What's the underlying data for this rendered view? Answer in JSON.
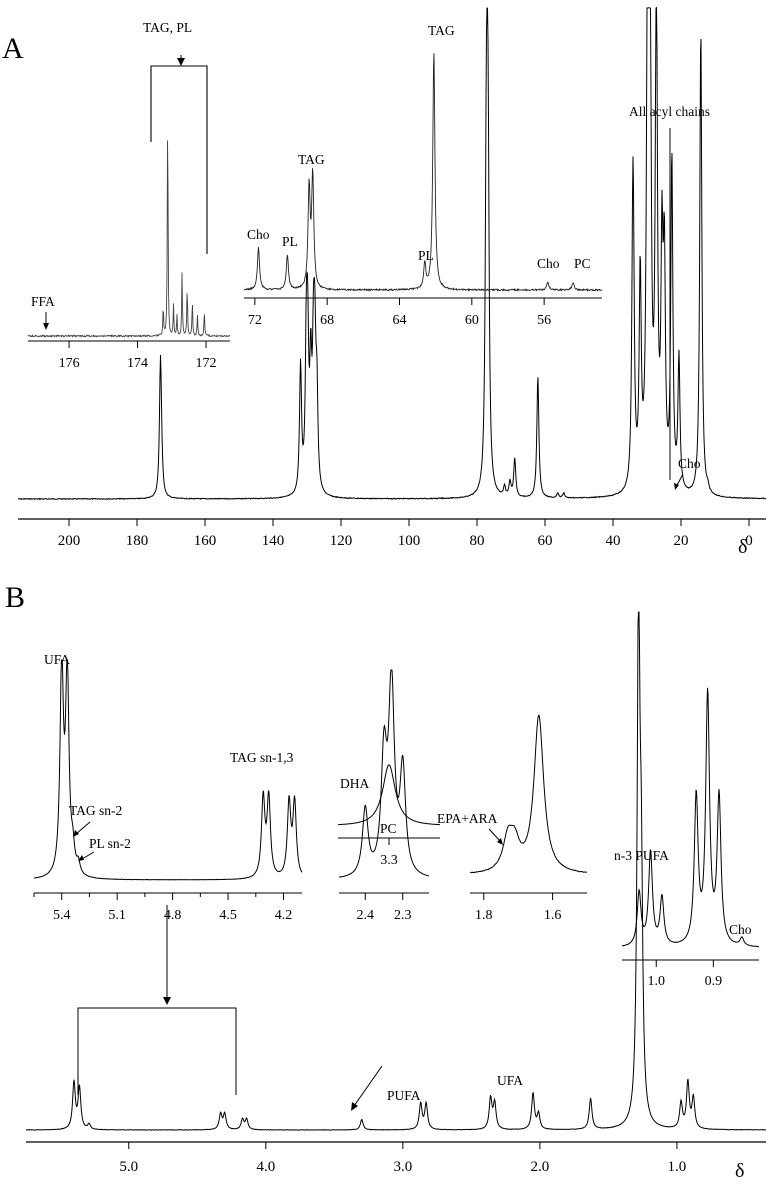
{
  "figure": {
    "panel_a_letter": "A",
    "panel_b_letter": "B",
    "delta_symbol": "δ"
  },
  "chart_data": [
    {
      "id": "A-main",
      "type": "line",
      "title": "",
      "xlabel": "δ",
      "ylabel": "",
      "xlim": [
        215,
        -5
      ],
      "x_reversed": true,
      "x_ticks": [
        "200",
        "180",
        "160",
        "140",
        "120",
        "100",
        "80",
        "60",
        "40",
        "20",
        "0"
      ],
      "grid": false,
      "peaks": [
        {
          "x": 173.1,
          "h": 0.27
        },
        {
          "x": 172.8,
          "h": 0.04
        },
        {
          "x": 131.9,
          "h": 0.26
        },
        {
          "x": 130.2,
          "h": 0.28
        },
        {
          "x": 129.8,
          "h": 0.27
        },
        {
          "x": 128.9,
          "h": 0.23
        },
        {
          "x": 128.1,
          "h": 0.25
        },
        {
          "x": 127.7,
          "h": 0.25
        },
        {
          "x": 127.1,
          "h": 0.19
        },
        {
          "x": 77.3,
          "h": 0.47
        },
        {
          "x": 77.0,
          "h": 0.49
        },
        {
          "x": 76.7,
          "h": 0.47
        },
        {
          "x": 71.9,
          "h": 0.02
        },
        {
          "x": 70.3,
          "h": 0.03
        },
        {
          "x": 68.9,
          "h": 0.08
        },
        {
          "x": 62.1,
          "h": 0.25
        },
        {
          "x": 56.3,
          "h": 0.01
        },
        {
          "x": 54.5,
          "h": 0.01
        },
        {
          "x": 34.2,
          "h": 0.39
        },
        {
          "x": 34.0,
          "h": 0.33
        },
        {
          "x": 32.0,
          "h": 0.43
        },
        {
          "x": 29.8,
          "h": 0.98
        },
        {
          "x": 29.4,
          "h": 0.85
        },
        {
          "x": 29.1,
          "h": 0.67
        },
        {
          "x": 27.3,
          "h": 0.52
        },
        {
          "x": 27.2,
          "h": 0.54
        },
        {
          "x": 25.6,
          "h": 0.46
        },
        {
          "x": 24.9,
          "h": 0.44
        },
        {
          "x": 22.7,
          "h": 0.68
        },
        {
          "x": 20.6,
          "h": 0.27
        },
        {
          "x": 14.2,
          "h": 0.73
        },
        {
          "x": 14.1,
          "h": 0.24
        },
        {
          "x": 12.1,
          "h": 0.01
        }
      ],
      "annotations": [
        "All acyl chains",
        "Cho"
      ]
    },
    {
      "id": "A-inset-carbonyl",
      "type": "line",
      "xlim": [
        177.2,
        171.3
      ],
      "x_reversed": true,
      "x_ticks": [
        "176",
        "174",
        "172"
      ],
      "peaks": [
        {
          "x": 173.25,
          "h": 0.12
        },
        {
          "x": 173.12,
          "h": 0.92
        },
        {
          "x": 172.95,
          "h": 0.12
        },
        {
          "x": 172.85,
          "h": 0.08
        },
        {
          "x": 172.7,
          "h": 0.25
        },
        {
          "x": 172.55,
          "h": 0.2
        },
        {
          "x": 172.4,
          "h": 0.14
        },
        {
          "x": 172.25,
          "h": 0.08
        },
        {
          "x": 172.05,
          "h": 0.1
        }
      ],
      "annotations": [
        "TAG, PL",
        "FFA"
      ]
    },
    {
      "id": "A-inset-glycerol",
      "type": "line",
      "xlim": [
        72.6,
        52.8
      ],
      "x_reversed": true,
      "x_ticks": [
        "72",
        "68",
        "64",
        "60",
        "56"
      ],
      "peaks": [
        {
          "x": 71.8,
          "h": 0.17
        },
        {
          "x": 70.2,
          "h": 0.14
        },
        {
          "x": 69.0,
          "h": 0.4
        },
        {
          "x": 68.8,
          "h": 0.45
        },
        {
          "x": 62.6,
          "h": 0.1
        },
        {
          "x": 62.1,
          "h": 0.96
        },
        {
          "x": 55.8,
          "h": 0.03
        },
        {
          "x": 54.4,
          "h": 0.03
        }
      ],
      "annotations": [
        "Cho",
        "PL",
        "TAG",
        "PL",
        "TAG",
        "Cho",
        "PC"
      ]
    },
    {
      "id": "B-main",
      "type": "line",
      "title": "",
      "xlabel": "δ",
      "ylabel": "",
      "xlim": [
        5.75,
        0.35
      ],
      "x_reversed": true,
      "x_ticks": [
        "5.0",
        "4.0",
        "3.0",
        "2.0",
        "1.0"
      ],
      "grid": false,
      "peaks": [
        {
          "x": 5.4,
          "h": 0.09
        },
        {
          "x": 5.36,
          "h": 0.08
        },
        {
          "x": 5.29,
          "h": 0.01
        },
        {
          "x": 4.33,
          "h": 0.03
        },
        {
          "x": 4.3,
          "h": 0.03
        },
        {
          "x": 4.17,
          "h": 0.02
        },
        {
          "x": 4.14,
          "h": 0.02
        },
        {
          "x": 3.3,
          "h": 0.02
        },
        {
          "x": 2.87,
          "h": 0.05
        },
        {
          "x": 2.83,
          "h": 0.05
        },
        {
          "x": 2.36,
          "h": 0.06
        },
        {
          "x": 2.33,
          "h": 0.05
        },
        {
          "x": 2.05,
          "h": 0.07
        },
        {
          "x": 2.01,
          "h": 0.03
        },
        {
          "x": 1.63,
          "h": 0.06
        },
        {
          "x": 1.28,
          "h": 1.0
        },
        {
          "x": 1.26,
          "h": 0.4
        },
        {
          "x": 0.97,
          "h": 0.05
        },
        {
          "x": 0.92,
          "h": 0.09
        },
        {
          "x": 0.88,
          "h": 0.06
        }
      ],
      "annotations": [
        "PUFA",
        "UFA"
      ]
    },
    {
      "id": "B-inset-5.4-4.2",
      "type": "line",
      "xlim": [
        5.55,
        4.1
      ],
      "x_reversed": true,
      "x_ticks": [
        "5.4",
        "5.1",
        "4.8",
        "4.5",
        "4.2"
      ],
      "peaks": [
        {
          "x": 5.4,
          "h": 0.95
        },
        {
          "x": 5.37,
          "h": 0.92
        },
        {
          "x": 5.34,
          "h": 0.1
        },
        {
          "x": 5.31,
          "h": 0.05
        },
        {
          "x": 4.31,
          "h": 0.36
        },
        {
          "x": 4.28,
          "h": 0.36
        },
        {
          "x": 4.17,
          "h": 0.34
        },
        {
          "x": 4.14,
          "h": 0.34
        }
      ],
      "annotations": [
        "UFA",
        "TAG sn-2",
        "PL sn-2",
        "TAG sn-1,3"
      ]
    },
    {
      "id": "B-inset-2.4-2.3",
      "type": "line",
      "xlim": [
        2.47,
        2.23
      ],
      "x_reversed": true,
      "x_ticks": [
        "2.4",
        "2.3"
      ],
      "peaks": [
        {
          "x": 2.4,
          "h": 0.32
        },
        {
          "x": 2.35,
          "h": 0.55
        },
        {
          "x": 2.33,
          "h": 0.9
        },
        {
          "x": 2.3,
          "h": 0.5
        }
      ],
      "annotations": [
        "DHA"
      ]
    },
    {
      "id": "B-inset-1.8-1.6",
      "type": "line",
      "xlim": [
        1.84,
        1.5
      ],
      "x_reversed": true,
      "x_ticks": [
        "1.8",
        "1.6"
      ],
      "peaks": [
        {
          "x": 1.73,
          "h": 0.18
        },
        {
          "x": 1.71,
          "h": 0.15
        },
        {
          "x": 1.64,
          "h": 0.9
        }
      ],
      "annotations": [
        "EPA+ARA"
      ]
    },
    {
      "id": "B-inset-1.0-0.9",
      "type": "line",
      "xlim": [
        1.06,
        0.82
      ],
      "x_reversed": true,
      "x_ticks": [
        "1.0",
        "0.9"
      ],
      "peaks": [
        {
          "x": 1.03,
          "h": 0.2
        },
        {
          "x": 1.01,
          "h": 0.35
        },
        {
          "x": 0.99,
          "h": 0.18
        },
        {
          "x": 0.93,
          "h": 0.55
        },
        {
          "x": 0.91,
          "h": 0.93
        },
        {
          "x": 0.89,
          "h": 0.55
        },
        {
          "x": 0.85,
          "h": 0.03
        }
      ],
      "annotations": [
        "n-3 PUFA",
        "Cho"
      ]
    },
    {
      "id": "B-inset-3.3",
      "type": "line",
      "xlim": [
        3.42,
        3.18
      ],
      "x_reversed": true,
      "x_ticks": [
        "3.3"
      ],
      "peaks": [
        {
          "x": 3.3,
          "h": 0.9
        }
      ],
      "annotations": [
        "PC"
      ]
    }
  ]
}
